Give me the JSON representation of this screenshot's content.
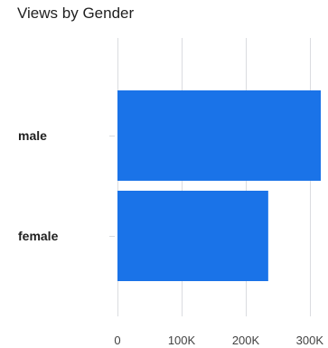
{
  "chart_data": {
    "type": "bar",
    "orientation": "horizontal",
    "title": "Views by Gender",
    "xlabel": "",
    "ylabel": "",
    "categories": [
      "male",
      "female"
    ],
    "values": [
      318000,
      235000
    ],
    "xlim": [
      0,
      300000
    ],
    "x_ticks": [
      0,
      100000,
      200000,
      300000
    ],
    "x_tick_labels": [
      "0",
      "100K",
      "200K",
      "300K"
    ],
    "grid": true,
    "legend": "none",
    "bar_color": "#1a73e8",
    "grid_color": "#dadce0",
    "text_color": "#212121",
    "axis_label_color": "#424242"
  }
}
